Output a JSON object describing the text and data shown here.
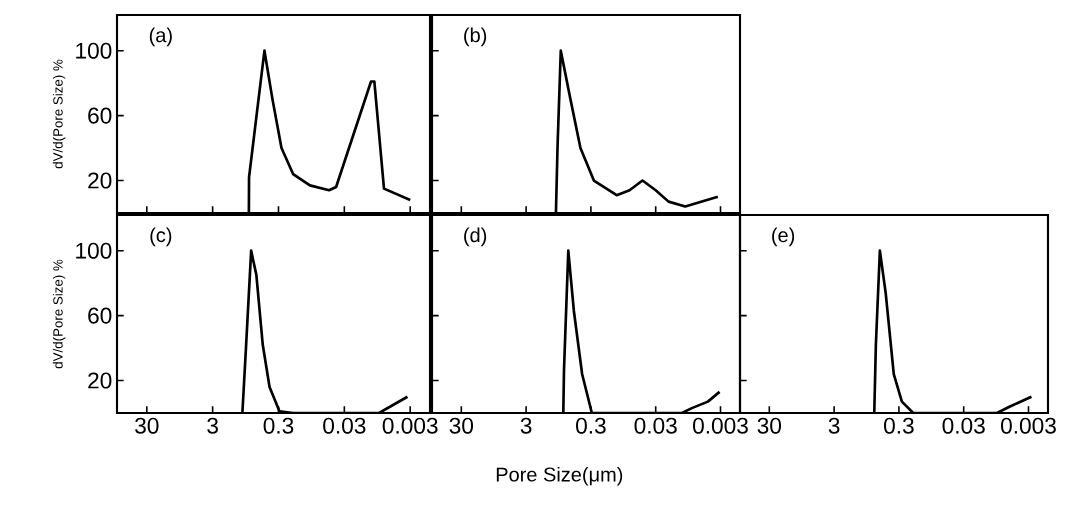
{
  "chart_data": [
    {
      "type": "line",
      "title": "(a)",
      "ylabel": "dV/d(Pore Size) %",
      "log": "x",
      "xlim": [
        85,
        0.0015
      ],
      "ylim": [
        0,
        122
      ],
      "xticks": [
        30,
        3,
        0.3,
        0.03,
        0.003
      ],
      "yticks": [
        20,
        60,
        100
      ],
      "tick_labels": "y",
      "marker": "none",
      "line_style": "solid",
      "series": [
        {
          "color": "#000000",
          "x": [
            0.845,
            0.84,
            0.49,
            0.37,
            0.27,
            0.18,
            0.1,
            0.051,
            0.04,
            0.0118,
            0.0105,
            0.0075,
            0.003
          ],
          "values": [
            0,
            22,
            100,
            70,
            40,
            24,
            17,
            14,
            16,
            81,
            81,
            15,
            8
          ]
        }
      ]
    },
    {
      "type": "line",
      "title": "(b)",
      "log": "x",
      "xlim": [
        85,
        0.0015
      ],
      "ylim": [
        0,
        122
      ],
      "xticks": [
        30,
        3,
        0.3,
        0.03,
        0.003
      ],
      "yticks": [
        20,
        60,
        100
      ],
      "tick_labels": false,
      "marker": "none",
      "line_style": "solid",
      "series": [
        {
          "color": "#000000",
          "x": [
            1.04,
            0.98,
            0.875,
            0.62,
            0.435,
            0.27,
            0.12,
            0.076,
            0.048,
            0.03,
            0.019,
            0.0105,
            0.0033
          ],
          "values": [
            0,
            42,
            100,
            70,
            40,
            20,
            11,
            14,
            20,
            14,
            7,
            4,
            10
          ]
        }
      ]
    },
    {
      "type": "line",
      "title": "(c)",
      "ylabel": "dV/d(Pore Size) %",
      "log": "x",
      "xlim": [
        85,
        0.0015
      ],
      "ylim": [
        0,
        122
      ],
      "xticks": [
        30,
        3,
        0.3,
        0.03,
        0.003
      ],
      "yticks": [
        20,
        60,
        100
      ],
      "marker": "none",
      "line_style": "solid",
      "series": [
        {
          "color": "#000000",
          "x": [
            1.06,
            0.93,
            0.78,
            0.65,
            0.52,
            0.41,
            0.29,
            0.18,
            0.0089,
            0.0033
          ],
          "values": [
            0,
            42,
            100,
            85,
            42,
            16,
            1,
            0,
            0,
            10
          ]
        }
      ]
    },
    {
      "type": "line",
      "title": "(d)",
      "xlabel": "Pore Size(μm)",
      "log": "x",
      "xlim": [
        85,
        0.0015
      ],
      "ylim": [
        0,
        122
      ],
      "xticks": [
        30,
        3,
        0.3,
        0.03,
        0.003
      ],
      "yticks": [
        20,
        60,
        100
      ],
      "tick_labels": "x",
      "marker": "none",
      "line_style": "solid",
      "series": [
        {
          "color": "#000000",
          "x": [
            0.8,
            0.78,
            0.67,
            0.55,
            0.41,
            0.29,
            0.0118,
            0.0083,
            0.0047,
            0.0031
          ],
          "values": [
            0,
            27,
            100,
            63,
            24,
            0,
            0,
            3,
            7,
            13
          ]
        }
      ]
    },
    {
      "type": "line",
      "title": "(e)",
      "log": "x",
      "xlim": [
        85,
        0.0015
      ],
      "ylim": [
        0,
        122
      ],
      "xticks": [
        30,
        3,
        0.3,
        0.03,
        0.003
      ],
      "yticks": [
        20,
        60,
        100
      ],
      "tick_labels": "x",
      "marker": "none",
      "line_style": "solid",
      "series": [
        {
          "color": "#000000",
          "x": [
            0.72,
            0.68,
            0.59,
            0.48,
            0.36,
            0.27,
            0.18,
            0.0092,
            0.0058,
            0.0027
          ],
          "values": [
            0,
            42,
            100,
            74,
            24,
            7,
            0,
            0,
            4,
            10
          ]
        }
      ]
    }
  ]
}
